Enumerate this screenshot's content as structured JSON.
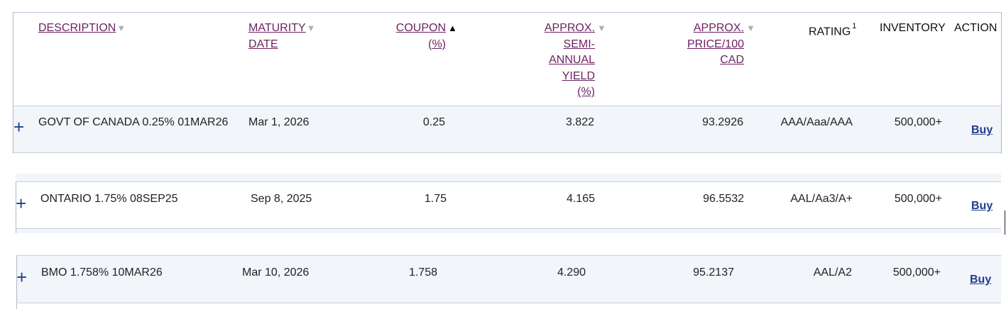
{
  "table": {
    "headers": {
      "description": "DESCRIPTION",
      "maturity_line1": "MATURITY",
      "maturity_line2": "DATE",
      "coupon_line1": "COUPON",
      "coupon_line2": "(%)",
      "yield_line1": "APPROX.",
      "yield_line2": "SEMI-",
      "yield_line3": "ANNUAL",
      "yield_line4": "YIELD",
      "yield_line5": "(%)",
      "price_line1": "APPROX.",
      "price_line2": "PRICE/100",
      "price_line3": "CAD",
      "rating": "RATING",
      "rating_footnote": "1",
      "inventory": "INVENTORY",
      "action": "ACTION",
      "sort_desc_glyph": "▼",
      "sort_asc_glyph": "▲"
    },
    "rows": [
      {
        "expand": "+",
        "description": "GOVT OF CANADA 0.25% 01MAR26",
        "maturity": "Mar 1, 2026",
        "coupon": "0.25",
        "yield": "3.822",
        "price": "93.2926",
        "rating": "AAA/Aaa/AAA",
        "inventory": "500,000+",
        "action": "Buy"
      },
      {
        "expand": "+",
        "description": "ONTARIO 1.75% 08SEP25",
        "maturity": "Sep 8, 2025",
        "coupon": "1.75",
        "yield": "4.165",
        "price": "96.5532",
        "rating": "AAL/Aa3/A+",
        "inventory": "500,000+",
        "action": "Buy"
      },
      {
        "expand": "+",
        "description": "BMO 1.758% 10MAR26",
        "maturity": "Mar 10, 2026",
        "coupon": "1.758",
        "yield": "4.290",
        "price": "95.2137",
        "rating": "AAL/A2",
        "inventory": "500,000+",
        "action": "Buy"
      }
    ]
  }
}
